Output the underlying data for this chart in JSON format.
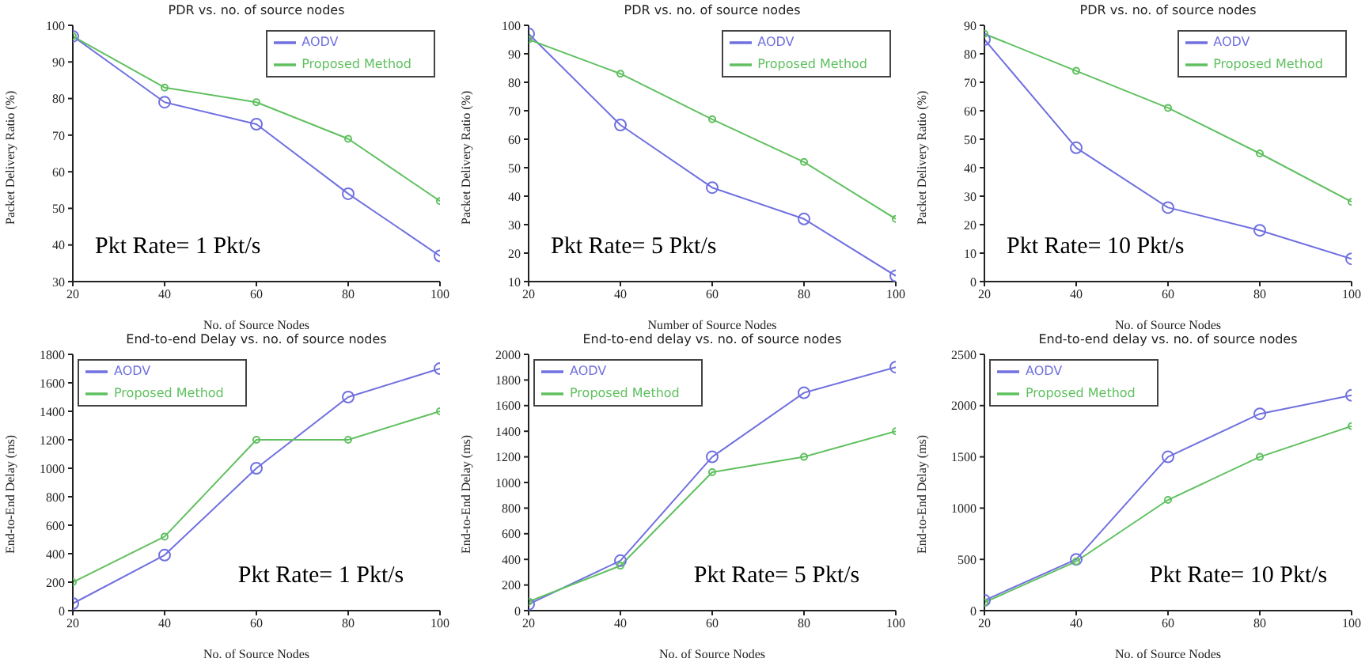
{
  "chart_data": [
    {
      "type": "line",
      "title": "PDR vs. no. of source nodes",
      "xlabel": "No. of Source Nodes",
      "ylabel": "Packet Delivery Ratio (%)",
      "x": [
        20,
        40,
        60,
        80,
        100
      ],
      "xlim": [
        20,
        100
      ],
      "xticks": [
        20,
        40,
        60,
        80,
        100
      ],
      "ylim": [
        30,
        100
      ],
      "yticks": [
        30,
        40,
        50,
        60,
        70,
        80,
        90,
        100
      ],
      "grid": false,
      "legend": "top right",
      "marker": "circle",
      "line_style": "solid",
      "annotations": [
        "Pkt Rate= 1 Pkt/s"
      ],
      "series": [
        {
          "name": "AODV",
          "color": "#7070e0",
          "values": [
            97,
            79,
            73,
            54,
            37
          ]
        },
        {
          "name": "Proposed Method",
          "color": "#60c060",
          "values": [
            97,
            83,
            79,
            69,
            52
          ]
        }
      ]
    },
    {
      "type": "line",
      "title": "PDR vs. no. of source nodes",
      "xlabel": "Number of Source Nodes",
      "ylabel": "Packet Delivery Ratio (%)",
      "x": [
        20,
        40,
        60,
        80,
        100
      ],
      "xlim": [
        20,
        100
      ],
      "xticks": [
        20,
        40,
        60,
        80,
        100
      ],
      "ylim": [
        10,
        100
      ],
      "yticks": [
        10,
        20,
        30,
        40,
        50,
        60,
        70,
        80,
        90,
        100
      ],
      "grid": false,
      "legend": "top right",
      "marker": "circle",
      "line_style": "solid",
      "annotations": [
        "Pkt Rate= 5 Pkt/s"
      ],
      "series": [
        {
          "name": "AODV",
          "color": "#7070e0",
          "values": [
            97,
            65,
            43,
            32,
            12
          ]
        },
        {
          "name": "Proposed Method",
          "color": "#60c060",
          "values": [
            95,
            83,
            67,
            52,
            32
          ]
        }
      ]
    },
    {
      "type": "line",
      "title": "PDR vs. no. of source nodes",
      "xlabel": "No. of Source Nodes",
      "ylabel": "Packet Delivery Ratio (%)",
      "x": [
        20,
        40,
        60,
        80,
        100
      ],
      "xlim": [
        20,
        100
      ],
      "xticks": [
        20,
        40,
        60,
        80,
        100
      ],
      "ylim": [
        0,
        90
      ],
      "yticks": [
        0,
        10,
        20,
        30,
        40,
        50,
        60,
        70,
        80,
        90
      ],
      "grid": false,
      "legend": "top right",
      "marker": "circle",
      "line_style": "solid",
      "annotations": [
        "Pkt Rate= 10 Pkt/s"
      ],
      "series": [
        {
          "name": "AODV",
          "color": "#7070e0",
          "values": [
            85,
            47,
            26,
            18,
            8
          ]
        },
        {
          "name": "Proposed Method",
          "color": "#60c060",
          "values": [
            87,
            74,
            61,
            45,
            28
          ]
        }
      ]
    },
    {
      "type": "line",
      "title": "End-to-end Delay vs. no. of source nodes",
      "xlabel": "No. of Source Nodes",
      "ylabel": "End-to-End Delay (ms)",
      "x": [
        20,
        40,
        60,
        80,
        100
      ],
      "xlim": [
        20,
        100
      ],
      "xticks": [
        20,
        40,
        60,
        80,
        100
      ],
      "ylim": [
        0,
        1800
      ],
      "yticks": [
        0,
        200,
        400,
        600,
        800,
        1000,
        1200,
        1400,
        1600,
        1800
      ],
      "grid": false,
      "legend": "top left",
      "marker": "circle",
      "line_style": "solid",
      "annotations": [
        "Pkt Rate= 1 Pkt/s"
      ],
      "series": [
        {
          "name": "AODV",
          "color": "#7070e0",
          "values": [
            50,
            390,
            1000,
            1500,
            1700
          ]
        },
        {
          "name": "Proposed Method",
          "color": "#60c060",
          "values": [
            200,
            520,
            1200,
            1200,
            1400
          ]
        }
      ]
    },
    {
      "type": "line",
      "title": "End-to-end delay vs. no. of source nodes",
      "xlabel": "No. of Source Nodes",
      "ylabel": "End-to-End Delay (ms)",
      "x": [
        20,
        40,
        60,
        80,
        100
      ],
      "xlim": [
        20,
        100
      ],
      "xticks": [
        20,
        40,
        60,
        80,
        100
      ],
      "ylim": [
        0,
        2000
      ],
      "yticks": [
        0,
        200,
        400,
        600,
        800,
        1000,
        1200,
        1400,
        1600,
        1800,
        2000
      ],
      "grid": false,
      "legend": "top left",
      "marker": "circle",
      "line_style": "solid",
      "annotations": [
        "Pkt Rate= 5 Pkt/s"
      ],
      "series": [
        {
          "name": "AODV",
          "color": "#7070e0",
          "values": [
            50,
            390,
            1200,
            1700,
            1900
          ]
        },
        {
          "name": "Proposed Method",
          "color": "#60c060",
          "values": [
            70,
            350,
            1080,
            1200,
            1400
          ]
        }
      ]
    },
    {
      "type": "line",
      "title": "End-to-end delay vs. no. of source nodes",
      "xlabel": "No. of Source Nodes",
      "ylabel": "End-to-End Delay (ms)",
      "x": [
        20,
        40,
        60,
        80,
        100
      ],
      "xlim": [
        20,
        100
      ],
      "xticks": [
        20,
        40,
        60,
        80,
        100
      ],
      "ylim": [
        0,
        2500
      ],
      "yticks": [
        0,
        500,
        1000,
        1500,
        2000,
        2500
      ],
      "grid": false,
      "legend": "top left",
      "marker": "circle",
      "line_style": "solid",
      "annotations": [
        "Pkt Rate= 10 Pkt/s"
      ],
      "series": [
        {
          "name": "AODV",
          "color": "#7070e0",
          "values": [
            100,
            500,
            1500,
            1920,
            2100
          ]
        },
        {
          "name": "Proposed Method",
          "color": "#60c060",
          "values": [
            80,
            480,
            1080,
            1500,
            1800
          ]
        }
      ]
    }
  ]
}
